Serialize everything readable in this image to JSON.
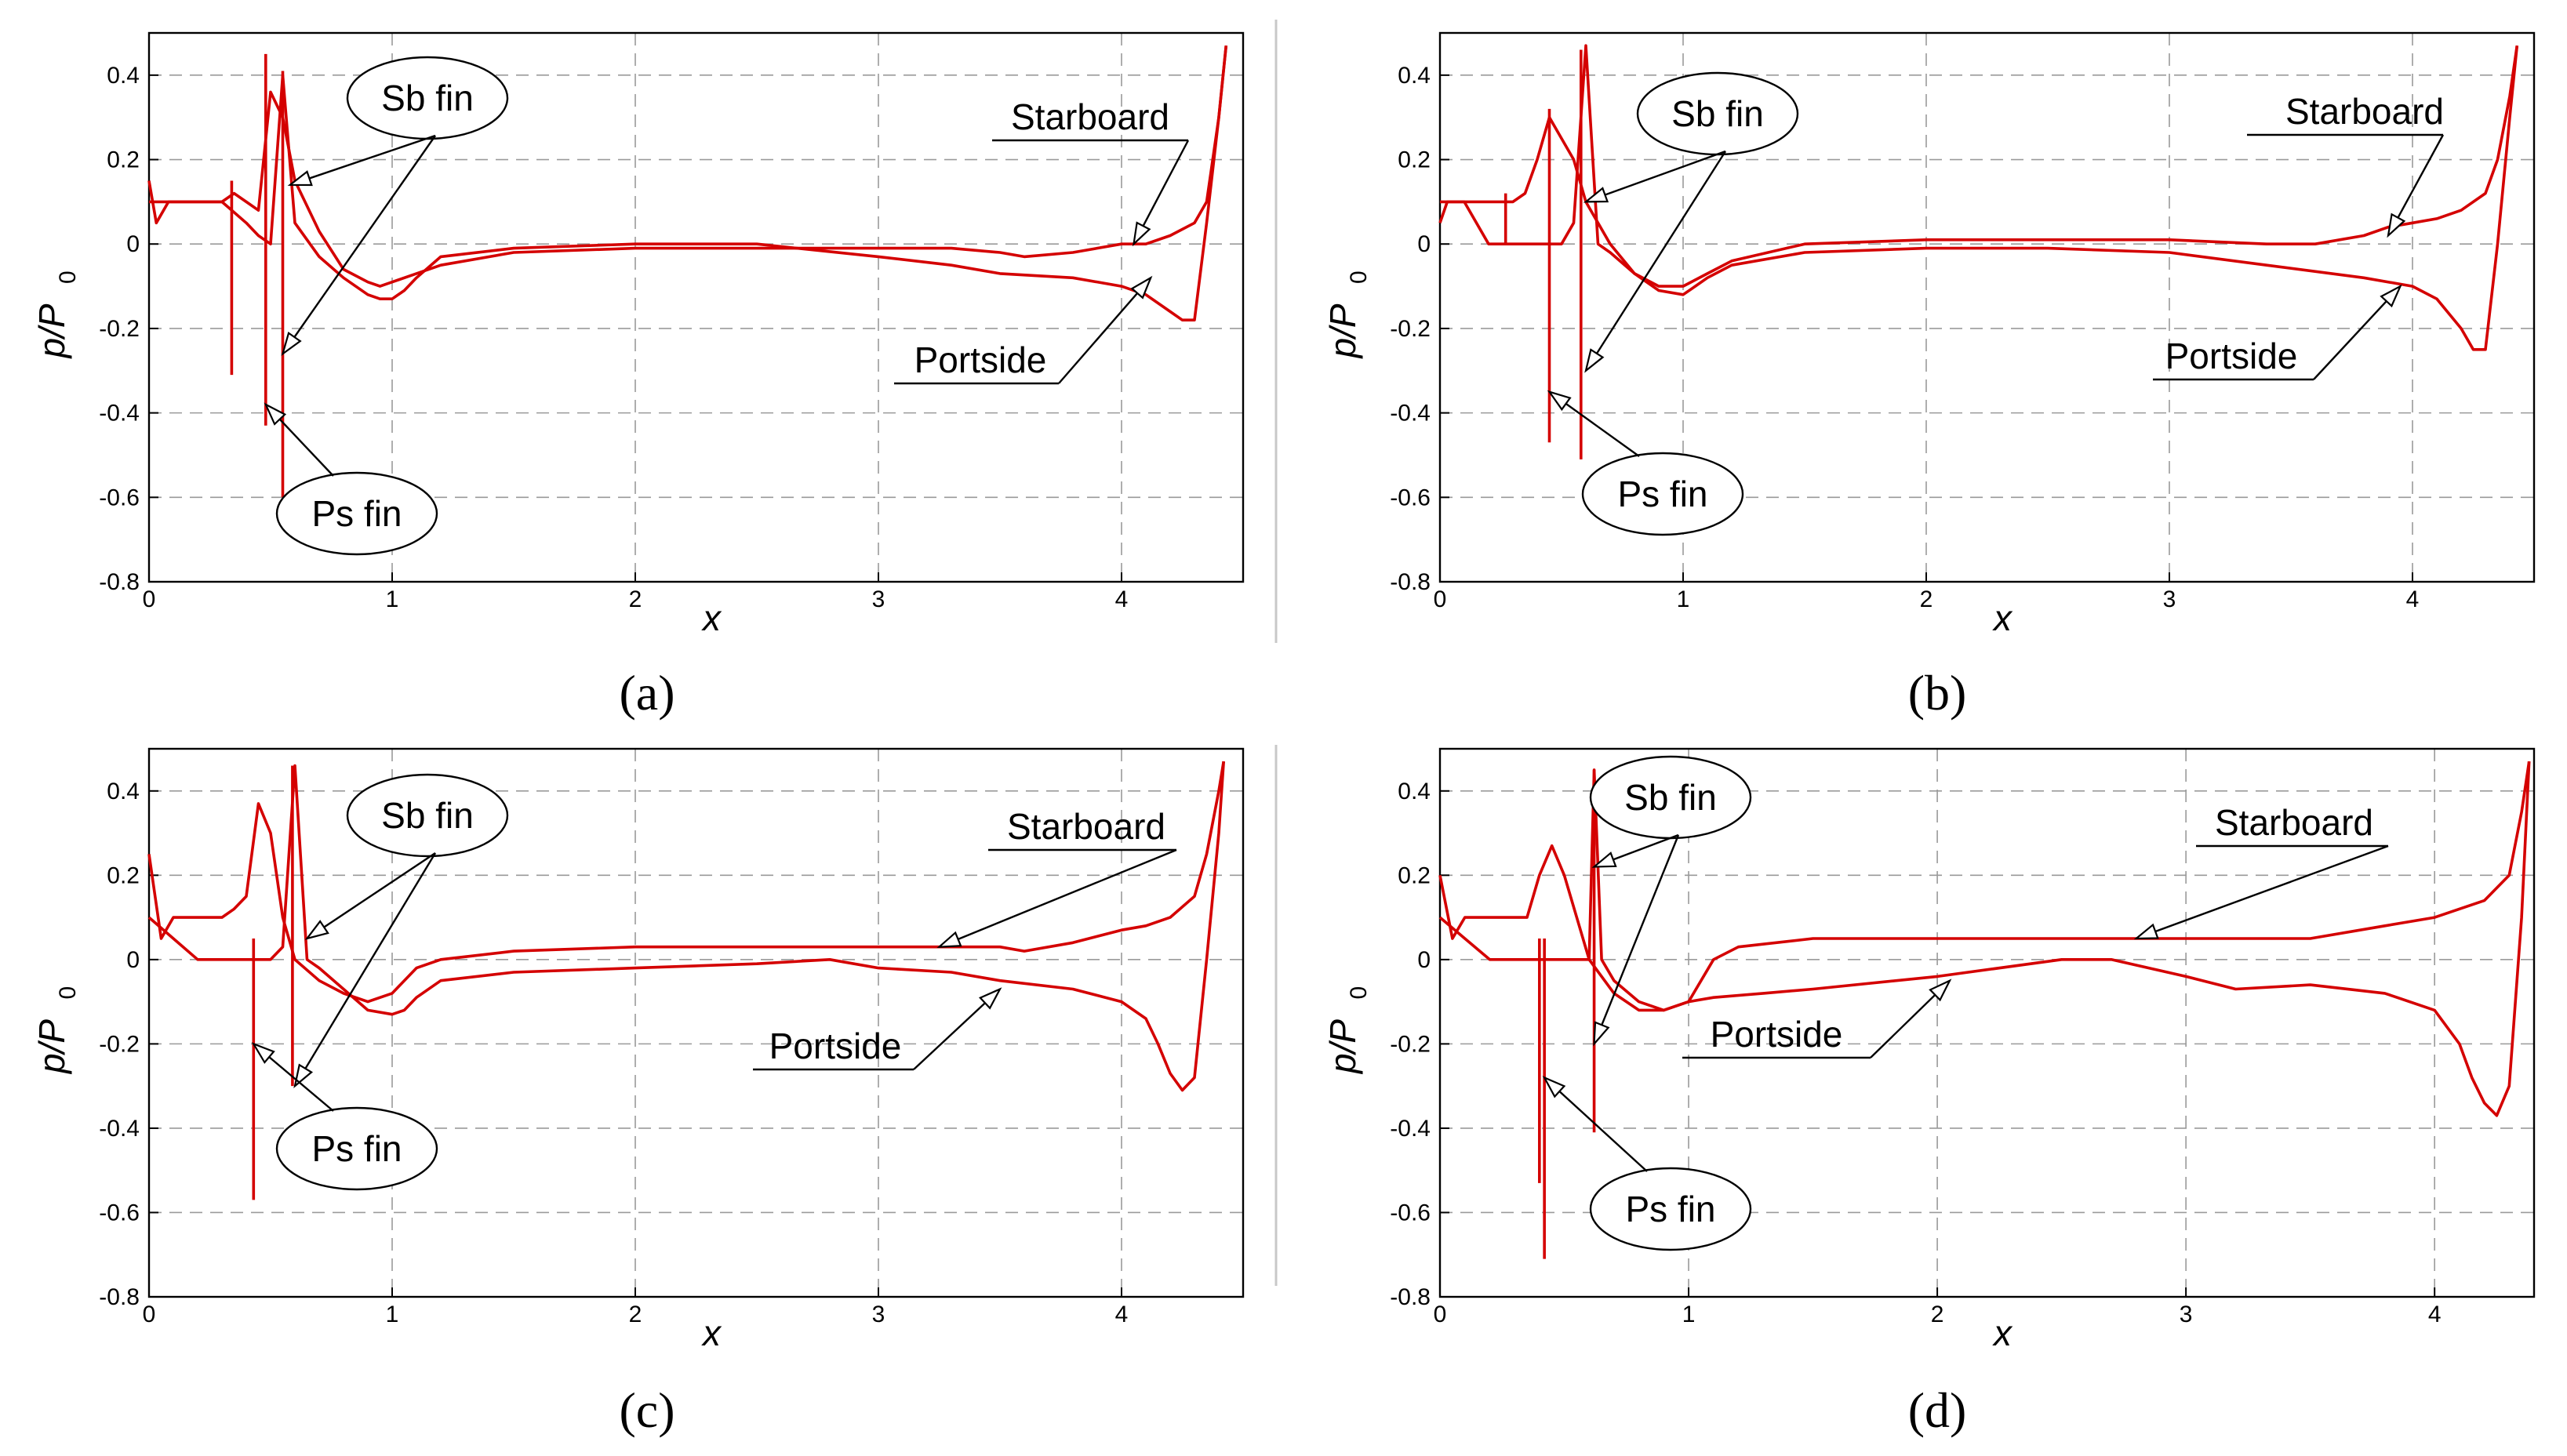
{
  "chart_data": [
    {
      "panel": "a",
      "type": "line",
      "xlabel": "x",
      "ylabel": "p/P",
      "ylabel_subscript": "0",
      "xlim": [
        0,
        4.5
      ],
      "ylim": [
        -0.8,
        0.5
      ],
      "xticks": [
        "0",
        "1",
        "2",
        "3",
        "4"
      ],
      "yticks": [
        "0.4",
        "0.2",
        "0",
        "-0.2",
        "-0.4",
        "-0.6",
        "-0.8"
      ],
      "grid": true,
      "line_color": "#d40000",
      "series": [
        {
          "name": "Starboard",
          "x": [
            0,
            0.03,
            0.08,
            0.2,
            0.3,
            0.35,
            0.4,
            0.45,
            0.5,
            0.55,
            0.6,
            0.7,
            0.8,
            0.9,
            0.95,
            1.0,
            1.1,
            1.2,
            1.5,
            2.0,
            2.5,
            3.0,
            3.3,
            3.5,
            3.6,
            3.8,
            4.0,
            4.1,
            4.2,
            4.3,
            4.35,
            4.4,
            4.43
          ],
          "y": [
            0.15,
            0.05,
            0.1,
            0.1,
            0.1,
            0.12,
            0.1,
            0.08,
            0.36,
            0.3,
            0.15,
            0.03,
            -0.06,
            -0.09,
            -0.1,
            -0.09,
            -0.07,
            -0.05,
            -0.02,
            -0.01,
            -0.01,
            -0.01,
            -0.01,
            -0.02,
            -0.03,
            -0.02,
            0.0,
            0.0,
            0.02,
            0.05,
            0.1,
            0.3,
            0.47
          ]
        },
        {
          "name": "Portside",
          "x": [
            0,
            0.1,
            0.2,
            0.3,
            0.4,
            0.45,
            0.5,
            0.55,
            0.6,
            0.7,
            0.8,
            0.9,
            0.95,
            1.0,
            1.05,
            1.1,
            1.2,
            1.5,
            2.0,
            2.5,
            3.0,
            3.3,
            3.5,
            3.8,
            4.0,
            4.1,
            4.2,
            4.25,
            4.3,
            4.35,
            4.4,
            4.43
          ],
          "y": [
            0.1,
            0.1,
            0.1,
            0.1,
            0.05,
            0.02,
            0.0,
            0.4,
            0.05,
            -0.03,
            -0.08,
            -0.12,
            -0.13,
            -0.13,
            -0.11,
            -0.08,
            -0.03,
            -0.01,
            0.0,
            0.0,
            -0.03,
            -0.05,
            -0.07,
            -0.08,
            -0.1,
            -0.12,
            -0.16,
            -0.18,
            -0.18,
            0.05,
            0.3,
            0.47
          ]
        }
      ],
      "spikes": [
        {
          "x": 0.34,
          "y_min": -0.31,
          "y_max": 0.15
        },
        {
          "x": 0.48,
          "y_min": -0.43,
          "y_max": 0.45
        },
        {
          "x": 0.55,
          "y_min": -0.6,
          "y_max": 0.41
        }
      ],
      "annotations": [
        {
          "text": "Sb fin",
          "style": "ellipse"
        },
        {
          "text": "Ps fin",
          "style": "ellipse"
        },
        {
          "text": "Starboard",
          "style": "underline"
        },
        {
          "text": "Portside",
          "style": "underline"
        }
      ],
      "label": "(a)"
    },
    {
      "panel": "b",
      "type": "line",
      "xlabel": "x",
      "ylabel": "p/P",
      "ylabel_subscript": "0",
      "xlim": [
        0,
        4.5
      ],
      "ylim": [
        -0.8,
        0.5
      ],
      "xticks": [
        "0",
        "1",
        "2",
        "3",
        "4"
      ],
      "yticks": [
        "0.4",
        "0.2",
        "0",
        "-0.2",
        "-0.4",
        "-0.6",
        "-0.8"
      ],
      "grid": true,
      "line_color": "#d40000",
      "series": [
        {
          "name": "Starboard",
          "x": [
            0,
            0.03,
            0.1,
            0.2,
            0.3,
            0.35,
            0.4,
            0.45,
            0.5,
            0.55,
            0.6,
            0.7,
            0.8,
            0.9,
            1.0,
            1.1,
            1.2,
            1.5,
            2.0,
            2.5,
            3.0,
            3.4,
            3.6,
            3.8,
            3.9,
            4.0,
            4.1,
            4.2,
            4.3,
            4.35,
            4.4,
            4.43
          ],
          "y": [
            0.05,
            0.1,
            0.1,
            0.1,
            0.1,
            0.12,
            0.2,
            0.3,
            0.25,
            0.2,
            0.1,
            0.0,
            -0.07,
            -0.1,
            -0.1,
            -0.07,
            -0.04,
            0.0,
            0.01,
            0.01,
            0.01,
            0.0,
            0.0,
            0.02,
            0.04,
            0.05,
            0.06,
            0.08,
            0.12,
            0.2,
            0.35,
            0.47
          ]
        },
        {
          "name": "Portside",
          "x": [
            0,
            0.1,
            0.2,
            0.3,
            0.4,
            0.5,
            0.55,
            0.6,
            0.65,
            0.7,
            0.8,
            0.9,
            1.0,
            1.05,
            1.1,
            1.2,
            1.5,
            2.0,
            2.5,
            3.0,
            3.4,
            3.8,
            4.0,
            4.1,
            4.2,
            4.25,
            4.3,
            4.35,
            4.4,
            4.43
          ],
          "y": [
            0.1,
            0.1,
            0.0,
            0.0,
            0.0,
            0.0,
            0.05,
            0.47,
            0.0,
            -0.02,
            -0.07,
            -0.11,
            -0.12,
            -0.1,
            -0.08,
            -0.05,
            -0.02,
            -0.01,
            -0.01,
            -0.02,
            -0.05,
            -0.08,
            -0.1,
            -0.13,
            -0.2,
            -0.25,
            -0.25,
            0.0,
            0.3,
            0.47
          ]
        }
      ],
      "spikes": [
        {
          "x": 0.27,
          "y_min": 0.0,
          "y_max": 0.12
        },
        {
          "x": 0.45,
          "y_min": -0.47,
          "y_max": 0.32
        },
        {
          "x": 0.58,
          "y_min": -0.51,
          "y_max": 0.46
        }
      ],
      "annotations": [
        {
          "text": "Sb fin",
          "style": "ellipse"
        },
        {
          "text": "Ps fin",
          "style": "ellipse"
        },
        {
          "text": "Starboard",
          "style": "underline"
        },
        {
          "text": "Portside",
          "style": "underline"
        }
      ],
      "label": "(b)"
    },
    {
      "panel": "c",
      "type": "line",
      "xlabel": "x",
      "ylabel": "p/P",
      "ylabel_subscript": "0",
      "xlim": [
        0,
        4.5
      ],
      "ylim": [
        -0.8,
        0.5
      ],
      "xticks": [
        "0",
        "1",
        "2",
        "3",
        "4"
      ],
      "yticks": [
        "0.4",
        "0.2",
        "0",
        "-0.2",
        "-0.4",
        "-0.6",
        "-0.8"
      ],
      "grid": true,
      "line_color": "#d40000",
      "series": [
        {
          "name": "Starboard",
          "x": [
            0,
            0.05,
            0.1,
            0.2,
            0.3,
            0.35,
            0.4,
            0.45,
            0.5,
            0.55,
            0.6,
            0.7,
            0.8,
            0.9,
            1.0,
            1.1,
            1.2,
            1.5,
            2.0,
            2.5,
            3.0,
            3.3,
            3.5,
            3.6,
            3.8,
            4.0,
            4.1,
            4.2,
            4.3,
            4.35,
            4.4,
            4.42
          ],
          "y": [
            0.25,
            0.05,
            0.1,
            0.1,
            0.1,
            0.12,
            0.15,
            0.37,
            0.3,
            0.1,
            0.0,
            -0.05,
            -0.08,
            -0.1,
            -0.08,
            -0.02,
            0.0,
            0.02,
            0.03,
            0.03,
            0.03,
            0.03,
            0.03,
            0.02,
            0.04,
            0.07,
            0.08,
            0.1,
            0.15,
            0.25,
            0.4,
            0.47
          ]
        },
        {
          "name": "Portside",
          "x": [
            0,
            0.1,
            0.2,
            0.3,
            0.4,
            0.5,
            0.55,
            0.6,
            0.65,
            0.7,
            0.8,
            0.9,
            1.0,
            1.05,
            1.1,
            1.2,
            1.5,
            2.0,
            2.5,
            2.8,
            3.0,
            3.3,
            3.5,
            3.8,
            4.0,
            4.1,
            4.15,
            4.2,
            4.25,
            4.3,
            4.35,
            4.4,
            4.42
          ],
          "y": [
            0.1,
            0.05,
            0.0,
            0.0,
            0.0,
            0.0,
            0.03,
            0.46,
            0.0,
            -0.02,
            -0.07,
            -0.12,
            -0.13,
            -0.12,
            -0.09,
            -0.05,
            -0.03,
            -0.02,
            -0.01,
            0.0,
            -0.02,
            -0.03,
            -0.05,
            -0.07,
            -0.1,
            -0.14,
            -0.2,
            -0.27,
            -0.31,
            -0.28,
            0.0,
            0.3,
            0.47
          ]
        }
      ],
      "spikes": [
        {
          "x": 0.43,
          "y_min": -0.57,
          "y_max": 0.05
        },
        {
          "x": 0.59,
          "y_min": -0.3,
          "y_max": 0.46
        }
      ],
      "annotations": [
        {
          "text": "Sb fin",
          "style": "ellipse"
        },
        {
          "text": "Ps fin",
          "style": "ellipse"
        },
        {
          "text": "Starboard",
          "style": "underline"
        },
        {
          "text": "Portside",
          "style": "underline"
        }
      ],
      "label": "(c)"
    },
    {
      "panel": "d",
      "type": "line",
      "xlabel": "x",
      "ylabel": "p/P",
      "ylabel_subscript": "0",
      "xlim": [
        0,
        4.4
      ],
      "ylim": [
        -0.8,
        0.5
      ],
      "xticks": [
        "0",
        "1",
        "2",
        "3",
        "4"
      ],
      "yticks": [
        "0.4",
        "0.2",
        "0",
        "-0.2",
        "-0.4",
        "-0.6",
        "-0.8"
      ],
      "grid": true,
      "line_color": "#d40000",
      "series": [
        {
          "name": "Starboard",
          "x": [
            0,
            0.05,
            0.1,
            0.2,
            0.3,
            0.35,
            0.4,
            0.45,
            0.5,
            0.55,
            0.6,
            0.7,
            0.8,
            0.9,
            1.0,
            1.1,
            1.2,
            1.5,
            2.0,
            2.5,
            3.0,
            3.5,
            3.8,
            4.0,
            4.1,
            4.2,
            4.3,
            4.35,
            4.38
          ],
          "y": [
            0.2,
            0.05,
            0.1,
            0.1,
            0.1,
            0.1,
            0.2,
            0.27,
            0.2,
            0.1,
            0.0,
            -0.08,
            -0.12,
            -0.12,
            -0.1,
            0.0,
            0.03,
            0.05,
            0.05,
            0.05,
            0.05,
            0.05,
            0.08,
            0.1,
            0.12,
            0.14,
            0.2,
            0.35,
            0.47
          ]
        },
        {
          "name": "Portside",
          "x": [
            0,
            0.1,
            0.2,
            0.3,
            0.4,
            0.5,
            0.55,
            0.6,
            0.62,
            0.65,
            0.7,
            0.8,
            0.9,
            1.0,
            1.1,
            1.3,
            1.5,
            2.0,
            2.5,
            2.7,
            3.0,
            3.2,
            3.5,
            3.8,
            4.0,
            4.1,
            4.15,
            4.2,
            4.25,
            4.3,
            4.35,
            4.38
          ],
          "y": [
            0.1,
            0.05,
            0.0,
            0.0,
            0.0,
            0.0,
            0.0,
            0.0,
            0.45,
            0.0,
            -0.05,
            -0.1,
            -0.12,
            -0.1,
            -0.09,
            -0.08,
            -0.07,
            -0.04,
            0.0,
            0.0,
            -0.04,
            -0.07,
            -0.06,
            -0.08,
            -0.12,
            -0.2,
            -0.28,
            -0.34,
            -0.37,
            -0.3,
            0.1,
            0.47
          ]
        }
      ],
      "spikes": [
        {
          "x": 0.4,
          "y_min": -0.53,
          "y_max": 0.05
        },
        {
          "x": 0.42,
          "y_min": -0.71,
          "y_max": 0.05
        },
        {
          "x": 0.62,
          "y_min": -0.41,
          "y_max": 0.45
        }
      ],
      "annotations": [
        {
          "text": "Sb fin",
          "style": "ellipse"
        },
        {
          "text": "Ps fin",
          "style": "ellipse"
        },
        {
          "text": "Starboard",
          "style": "underline"
        },
        {
          "text": "Portside",
          "style": "underline"
        }
      ],
      "label": "(d)"
    }
  ]
}
